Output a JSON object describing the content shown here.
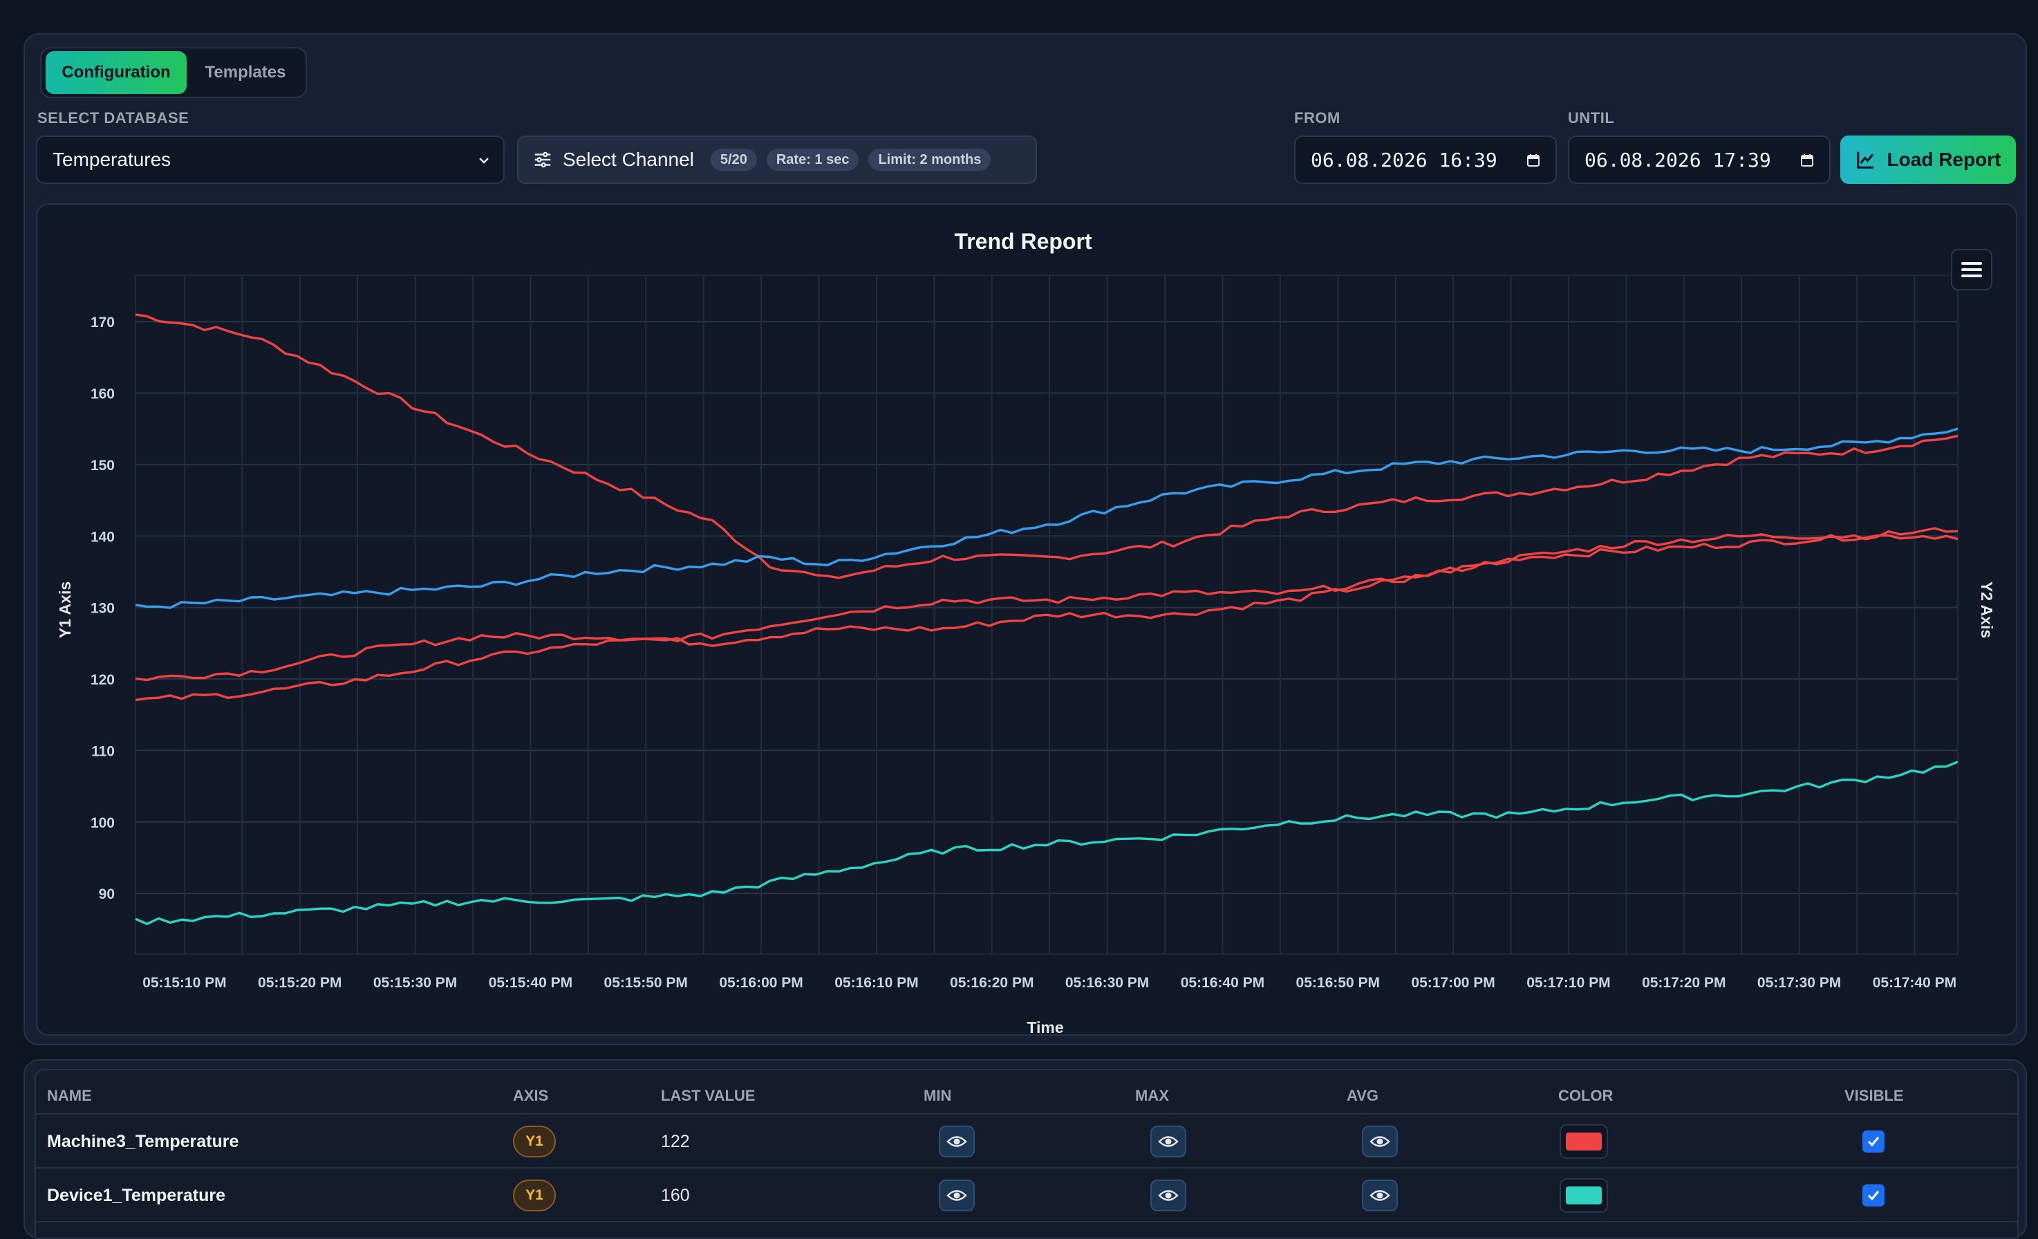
{
  "tabs": [
    {
      "label": "Configuration",
      "active": true
    },
    {
      "label": "Templates",
      "active": false
    }
  ],
  "labels": {
    "select_database": "SELECT DATABASE",
    "from": "FROM",
    "until": "UNTIL"
  },
  "database": {
    "selected": "Temperatures"
  },
  "channel": {
    "label": "Select Channel",
    "count": "5/20",
    "rate": "Rate: 1 sec",
    "limit": "Limit: 2 months"
  },
  "dates": {
    "from": "06.08.2026 16:39",
    "until": "06.08.2026 17:39"
  },
  "load_button": "Load Report",
  "colors": {
    "accent": "#22c55e",
    "series_red": "#ef4444",
    "series_blue": "#3b9eea",
    "series_teal": "#2dd4bf"
  },
  "chart_data": {
    "type": "line",
    "title": "Trend Report",
    "xlabel": "Time",
    "ylabel": "Y1 Axis",
    "y2label": "Y2 Axis",
    "ylim": [
      81.5,
      176.5
    ],
    "yticks": [
      90,
      100,
      110,
      120,
      130,
      140,
      150,
      160,
      170
    ],
    "xlim": [
      0,
      158
    ],
    "x_tick_labels": [
      "05:15:10 PM",
      "05:15:20 PM",
      "05:15:30 PM",
      "05:15:40 PM",
      "05:15:50 PM",
      "05:16:00 PM",
      "05:16:10 PM",
      "05:16:20 PM",
      "05:16:30 PM",
      "05:16:40 PM",
      "05:16:50 PM",
      "05:17:00 PM",
      "05:17:10 PM",
      "05:17:20 PM",
      "05:17:30 PM",
      "05:17:40 PM"
    ],
    "x_tick_positions": [
      4.25,
      14.25,
      24.25,
      34.25,
      44.25,
      54.25,
      64.25,
      74.25,
      84.25,
      94.25,
      104.25,
      114.25,
      124.25,
      134.25,
      144.25,
      154.25
    ],
    "grid": true,
    "series": [
      {
        "color": "#ef4444",
        "x": [
          0,
          10,
          20,
          30,
          40,
          50,
          55,
          60,
          70,
          80,
          90,
          100,
          110,
          120,
          130,
          140,
          150,
          158
        ],
        "y": [
          171,
          168,
          161,
          154,
          148,
          142,
          136,
          134,
          137,
          137,
          139,
          143,
          145,
          146,
          148,
          151,
          152,
          154
        ]
      },
      {
        "color": "#3b9eea",
        "x": [
          0,
          10,
          20,
          30,
          40,
          50,
          55,
          60,
          70,
          80,
          90,
          100,
          110,
          120,
          130,
          140,
          150,
          158
        ],
        "y": [
          130,
          131,
          132,
          133,
          135,
          136,
          137,
          136,
          139,
          142,
          146,
          148,
          150,
          151,
          152,
          152,
          153,
          155
        ]
      },
      {
        "color": "#ef4444",
        "x": [
          0,
          10,
          20,
          30,
          40,
          50,
          60,
          70,
          80,
          90,
          100,
          110,
          120,
          130,
          140,
          150,
          158
        ],
        "y": [
          120,
          121,
          124,
          126,
          126,
          125,
          127,
          127,
          129,
          129,
          131,
          134,
          137,
          138,
          139,
          140,
          140
        ]
      },
      {
        "color": "#ef4444",
        "x": [
          0,
          10,
          20,
          30,
          40,
          50,
          60,
          70,
          80,
          90,
          100,
          110,
          120,
          130,
          140,
          150,
          158
        ],
        "y": [
          117,
          118,
          120,
          123,
          125,
          126,
          129,
          131,
          131,
          132,
          132,
          134,
          137,
          139,
          140,
          140,
          141
        ]
      },
      {
        "color": "#2dd4bf",
        "x": [
          0,
          10,
          20,
          30,
          40,
          50,
          60,
          70,
          80,
          90,
          100,
          110,
          120,
          130,
          140,
          150,
          158
        ],
        "y": [
          86,
          87,
          88,
          89,
          89,
          90,
          93,
          96,
          97,
          98,
          100,
          101,
          101,
          103,
          104,
          106,
          108
        ]
      }
    ]
  },
  "table": {
    "headers": [
      "NAME",
      "AXIS",
      "LAST VALUE",
      "MIN",
      "MAX",
      "AVG",
      "COLOR",
      "VISIBLE"
    ],
    "rows": [
      {
        "name": "Machine3_Temperature",
        "axis": "Y1",
        "last_value": "122",
        "color": "#ef4444",
        "visible": true
      },
      {
        "name": "Device1_Temperature",
        "axis": "Y1",
        "last_value": "160",
        "color": "#2dd4bf",
        "visible": true
      }
    ]
  }
}
